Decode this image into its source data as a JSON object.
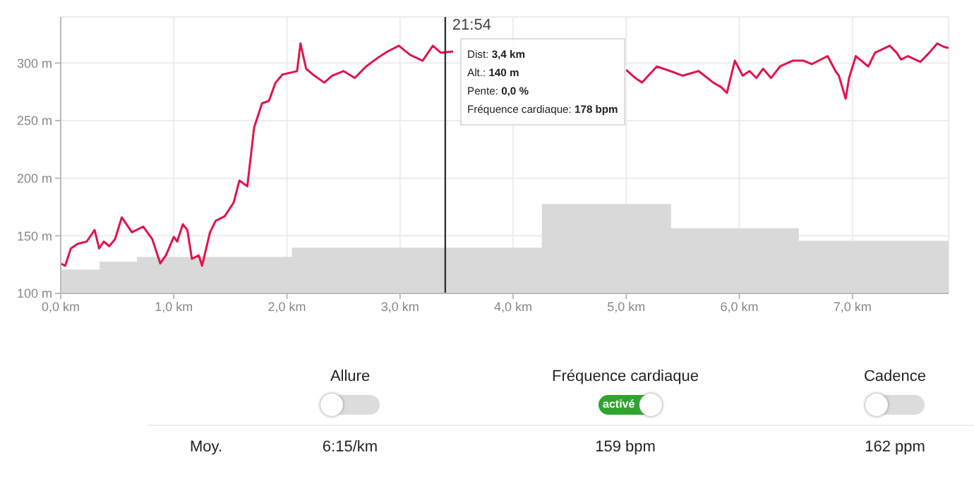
{
  "chart_data": {
    "type": "line",
    "xlim": [
      0,
      7.85
    ],
    "ylim": [
      100,
      340
    ],
    "xticks": [
      {
        "value": 0,
        "label": "0,0 km"
      },
      {
        "value": 1,
        "label": "1,0 km"
      },
      {
        "value": 2,
        "label": "2,0 km"
      },
      {
        "value": 3,
        "label": "3,0 km"
      },
      {
        "value": 4,
        "label": "4,0 km"
      },
      {
        "value": 5,
        "label": "5,0 km"
      },
      {
        "value": 6,
        "label": "6,0 km"
      },
      {
        "value": 7,
        "label": "7,0 km"
      }
    ],
    "yticks": [
      {
        "value": 100,
        "label": "100 m"
      },
      {
        "value": 150,
        "label": "150 m"
      },
      {
        "value": 200,
        "label": "200 m"
      },
      {
        "value": 250,
        "label": "250 m"
      },
      {
        "value": 300,
        "label": "300 m"
      }
    ],
    "grid": true,
    "legend": false,
    "marker": "none",
    "line_style": "solid",
    "series": [
      {
        "type": "area",
        "color": "#d9d9d9",
        "x": [
          0,
          0.35,
          0.35,
          0.68,
          0.68,
          2.05,
          2.05,
          4.26,
          4.26,
          5.39,
          5.39,
          6.52,
          6.52,
          7.85
        ],
        "values": [
          120,
          120,
          127,
          127,
          131,
          131,
          139,
          139,
          177,
          177,
          156,
          156,
          145,
          145
        ]
      },
      {
        "color": "#e0144c",
        "x": [
          0,
          0.04,
          0.09,
          0.15,
          0.23,
          0.3,
          0.34,
          0.38,
          0.43,
          0.48,
          0.54,
          0.63,
          0.73,
          0.81,
          0.88,
          0.93,
          1,
          1.03,
          1.08,
          1.12,
          1.16,
          1.22,
          1.25,
          1.32,
          1.37,
          1.45,
          1.53,
          1.58,
          1.65,
          1.71,
          1.78,
          1.84,
          1.9,
          1.96,
          2.05,
          2.09,
          2.12,
          2.17,
          2.23,
          2.33,
          2.4,
          2.5,
          2.6,
          2.7,
          2.81,
          2.89,
          2.99,
          3.09,
          3.2,
          3.29,
          3.36,
          3.47,
          3.79,
          3.87,
          3.96,
          4.12,
          4.25,
          4.37,
          4.54,
          4.66,
          4.77,
          4.85,
          5,
          5.08,
          5.14,
          5.27,
          5.39,
          5.5,
          5.64,
          5.77,
          5.84,
          5.89,
          5.96,
          6.03,
          6.09,
          6.15,
          6.21,
          6.28,
          6.36,
          6.47,
          6.57,
          6.64,
          6.78,
          6.85,
          6.88,
          6.94,
          6.97,
          7.03,
          7.14,
          7.2,
          7.33,
          7.39,
          7.43,
          7.49,
          7.6,
          7.68,
          7.75,
          7.81,
          7.85
        ],
        "values": [
          126,
          124,
          139,
          143,
          145,
          155,
          139,
          145,
          141,
          147,
          166,
          153,
          158,
          147,
          126,
          133,
          149,
          145,
          160,
          155,
          130,
          133,
          124,
          153,
          163,
          167,
          179,
          198,
          193,
          244,
          265,
          267,
          283,
          290,
          292,
          293,
          317,
          295,
          290,
          283,
          289,
          293,
          287,
          297,
          305,
          310,
          315,
          307,
          302,
          315,
          309,
          310,
          null,
          null,
          null,
          null,
          null,
          null,
          null,
          null,
          null,
          null,
          294,
          287,
          283,
          297,
          293,
          289,
          293,
          283,
          279,
          274,
          302,
          289,
          293,
          287,
          295,
          287,
          297,
          302,
          302,
          299,
          306,
          293,
          289,
          269,
          287,
          306,
          297,
          309,
          315,
          309,
          303,
          306,
          301,
          309,
          317,
          314,
          313
        ]
      }
    ],
    "ref_lines": [
      {
        "axis": "x",
        "value": 3.4,
        "color": "#333333"
      }
    ],
    "annotations": [
      {
        "text": "21:54",
        "x": 3.4
      },
      "Dist: 3,4 km",
      "Alt.: 140 m",
      "Pente: 0,0 %",
      "Fréquence cardiaque: 178 bpm",
      "Allure",
      "Fréquence cardiaque",
      "Cadence",
      "activé",
      "Moy.",
      "6:15/km",
      "159 bpm",
      "162 ppm"
    ]
  }
}
